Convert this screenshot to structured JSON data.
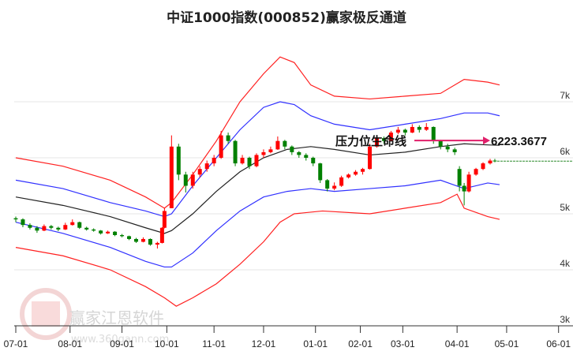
{
  "chart_data": {
    "type": "candlestick",
    "title": "中证1000指数(000852)赢家极反通道",
    "xlabel": "",
    "ylabel": "",
    "ylim": [
      3000,
      8800
    ],
    "yticks": [
      {
        "v": 3000,
        "label": "3k"
      },
      {
        "v": 4000,
        "label": "4k"
      },
      {
        "v": 5000,
        "label": "5k"
      },
      {
        "v": 6000,
        "label": "6k"
      },
      {
        "v": 7000,
        "label": "7k"
      }
    ],
    "xticks": [
      {
        "i": 0,
        "label": "07-01"
      },
      {
        "i": 23,
        "label": "08-01"
      },
      {
        "i": 45,
        "label": "09-01"
      },
      {
        "i": 64,
        "label": "10-01"
      },
      {
        "i": 84,
        "label": "11-01"
      },
      {
        "i": 105,
        "label": "12-01"
      },
      {
        "i": 127,
        "label": "01-01"
      },
      {
        "i": 146,
        "label": "02-01"
      },
      {
        "i": 164,
        "label": "03-01"
      },
      {
        "i": 187,
        "label": "04-01"
      },
      {
        "i": 208,
        "label": "05-01"
      },
      {
        "i": 230,
        "label": "06-01"
      }
    ],
    "x_unit": "trading-day index from 07-01",
    "candles_ohlc": [
      [
        0,
        4920,
        4950,
        4850,
        4900
      ],
      [
        3,
        4900,
        4920,
        4760,
        4800
      ],
      [
        6,
        4800,
        4830,
        4720,
        4750
      ],
      [
        9,
        4750,
        4780,
        4660,
        4700
      ],
      [
        12,
        4700,
        4810,
        4690,
        4780
      ],
      [
        15,
        4780,
        4800,
        4720,
        4750
      ],
      [
        18,
        4750,
        4770,
        4690,
        4720
      ],
      [
        21,
        4720,
        4840,
        4710,
        4800
      ],
      [
        24,
        4800,
        4900,
        4790,
        4850
      ],
      [
        27,
        4850,
        4860,
        4730,
        4750
      ],
      [
        30,
        4750,
        4770,
        4700,
        4720
      ],
      [
        33,
        4720,
        4740,
        4680,
        4700
      ],
      [
        36,
        4700,
        4710,
        4630,
        4650
      ],
      [
        39,
        4650,
        4700,
        4640,
        4680
      ],
      [
        42,
        4680,
        4690,
        4600,
        4620
      ],
      [
        45,
        4620,
        4640,
        4580,
        4600
      ],
      [
        48,
        4600,
        4610,
        4530,
        4550
      ],
      [
        51,
        4550,
        4570,
        4480,
        4500
      ],
      [
        54,
        4500,
        4580,
        4490,
        4550
      ],
      [
        57,
        4550,
        4560,
        4430,
        4450
      ],
      [
        60,
        4450,
        4500,
        4380,
        4480
      ],
      [
        62,
        4480,
        4760,
        4470,
        4750
      ],
      [
        63,
        4750,
        5100,
        4740,
        5050
      ],
      [
        66,
        5100,
        6400,
        5100,
        6200
      ],
      [
        69,
        6200,
        6250,
        5600,
        5700
      ],
      [
        72,
        5700,
        5750,
        5380,
        5500
      ],
      [
        75,
        5500,
        5750,
        5450,
        5700
      ],
      [
        78,
        5700,
        5850,
        5650,
        5800
      ],
      [
        81,
        5800,
        5950,
        5750,
        5900
      ],
      [
        84,
        5900,
        6050,
        5850,
        6000
      ],
      [
        87,
        6000,
        6480,
        5980,
        6400
      ],
      [
        90,
        6400,
        6450,
        6250,
        6300
      ],
      [
        93,
        6300,
        6320,
        5850,
        5900
      ],
      [
        96,
        5900,
        6050,
        5880,
        6000
      ],
      [
        99,
        6000,
        6020,
        5800,
        5850
      ],
      [
        102,
        5850,
        6080,
        5830,
        6050
      ],
      [
        105,
        6050,
        6150,
        6000,
        6100
      ],
      [
        108,
        6100,
        6200,
        6080,
        6150
      ],
      [
        111,
        6150,
        6380,
        6140,
        6300
      ],
      [
        114,
        6300,
        6320,
        6150,
        6200
      ],
      [
        117,
        6200,
        6220,
        6050,
        6100
      ],
      [
        120,
        6100,
        6120,
        6000,
        6050
      ],
      [
        123,
        6050,
        6080,
        5950,
        6000
      ],
      [
        126,
        6000,
        6020,
        5850,
        5900
      ],
      [
        129,
        5900,
        5910,
        5550,
        5600
      ],
      [
        132,
        5600,
        5620,
        5400,
        5450
      ],
      [
        135,
        5450,
        5560,
        5420,
        5500
      ],
      [
        138,
        5500,
        5680,
        5480,
        5650
      ],
      [
        141,
        5650,
        5720,
        5630,
        5700
      ],
      [
        144,
        5700,
        5780,
        5680,
        5750
      ],
      [
        147,
        5750,
        5820,
        5700,
        5800
      ],
      [
        150,
        5800,
        6250,
        5790,
        6200
      ],
      [
        153,
        6200,
        6400,
        6180,
        6350
      ],
      [
        156,
        6350,
        6380,
        6250,
        6300
      ],
      [
        159,
        6300,
        6480,
        6290,
        6450
      ],
      [
        162,
        6450,
        6550,
        6420,
        6500
      ],
      [
        165,
        6500,
        6520,
        6400,
        6450
      ],
      [
        168,
        6450,
        6600,
        6440,
        6550
      ],
      [
        171,
        6550,
        6580,
        6450,
        6500
      ],
      [
        174,
        6500,
        6620,
        6480,
        6550
      ],
      [
        177,
        6550,
        6560,
        6250,
        6300
      ],
      [
        180,
        6300,
        6320,
        6150,
        6200
      ],
      [
        183,
        6200,
        6250,
        6100,
        6150
      ],
      [
        186,
        6150,
        6180,
        6050,
        6100
      ],
      [
        188,
        5800,
        5850,
        5400,
        5500
      ],
      [
        190,
        5500,
        5550,
        5150,
        5400
      ],
      [
        192,
        5400,
        5750,
        5380,
        5700
      ],
      [
        195,
        5700,
        5820,
        5680,
        5800
      ],
      [
        198,
        5800,
        5920,
        5780,
        5900
      ],
      [
        201,
        5900,
        5980,
        5880,
        5950
      ],
      [
        203,
        5950,
        5980,
        5920,
        5940
      ]
    ],
    "series": [
      {
        "name": "upper-outer",
        "color": "#ff2020",
        "points": [
          [
            0,
            6000
          ],
          [
            20,
            5850
          ],
          [
            40,
            5600
          ],
          [
            55,
            5300
          ],
          [
            63,
            5100
          ],
          [
            66,
            5200
          ],
          [
            75,
            5700
          ],
          [
            85,
            6300
          ],
          [
            95,
            7000
          ],
          [
            105,
            7500
          ],
          [
            112,
            7800
          ],
          [
            118,
            7700
          ],
          [
            125,
            7300
          ],
          [
            135,
            7100
          ],
          [
            150,
            7050
          ],
          [
            165,
            7100
          ],
          [
            180,
            7150
          ],
          [
            190,
            7400
          ],
          [
            200,
            7350
          ],
          [
            205,
            7300
          ]
        ]
      },
      {
        "name": "upper-inner",
        "color": "#3030ff",
        "points": [
          [
            0,
            5600
          ],
          [
            20,
            5450
          ],
          [
            40,
            5200
          ],
          [
            55,
            5050
          ],
          [
            63,
            4950
          ],
          [
            66,
            5000
          ],
          [
            75,
            5500
          ],
          [
            85,
            6000
          ],
          [
            95,
            6500
          ],
          [
            105,
            6900
          ],
          [
            112,
            7000
          ],
          [
            118,
            6950
          ],
          [
            125,
            6750
          ],
          [
            135,
            6600
          ],
          [
            150,
            6500
          ],
          [
            165,
            6600
          ],
          [
            180,
            6700
          ],
          [
            190,
            6800
          ],
          [
            200,
            6800
          ],
          [
            205,
            6750
          ]
        ]
      },
      {
        "name": "middle",
        "color": "#222222",
        "points": [
          [
            0,
            5300
          ],
          [
            20,
            5150
          ],
          [
            40,
            4950
          ],
          [
            55,
            4750
          ],
          [
            63,
            4650
          ],
          [
            66,
            4700
          ],
          [
            75,
            5000
          ],
          [
            85,
            5400
          ],
          [
            95,
            5750
          ],
          [
            105,
            6000
          ],
          [
            115,
            6150
          ],
          [
            125,
            6200
          ],
          [
            135,
            6150
          ],
          [
            150,
            6050
          ],
          [
            165,
            6100
          ],
          [
            180,
            6200
          ],
          [
            190,
            6250
          ],
          [
            200,
            6230
          ],
          [
            205,
            6223
          ]
        ]
      },
      {
        "name": "lower-inner",
        "color": "#3030ff",
        "points": [
          [
            0,
            4850
          ],
          [
            20,
            4650
          ],
          [
            40,
            4400
          ],
          [
            55,
            4150
          ],
          [
            63,
            4050
          ],
          [
            66,
            4050
          ],
          [
            75,
            4300
          ],
          [
            85,
            4700
          ],
          [
            95,
            5050
          ],
          [
            105,
            5300
          ],
          [
            115,
            5400
          ],
          [
            125,
            5450
          ],
          [
            135,
            5400
          ],
          [
            150,
            5450
          ],
          [
            165,
            5500
          ],
          [
            180,
            5600
          ],
          [
            190,
            5450
          ],
          [
            200,
            5550
          ],
          [
            205,
            5520
          ]
        ]
      },
      {
        "name": "lower-outer",
        "color": "#ff2020",
        "points": [
          [
            0,
            4400
          ],
          [
            20,
            4250
          ],
          [
            40,
            4000
          ],
          [
            55,
            3700
          ],
          [
            63,
            3500
          ],
          [
            68,
            3350
          ],
          [
            75,
            3500
          ],
          [
            85,
            3750
          ],
          [
            95,
            4100
          ],
          [
            105,
            4500
          ],
          [
            112,
            4850
          ],
          [
            118,
            5000
          ],
          [
            130,
            5050
          ],
          [
            150,
            5000
          ],
          [
            165,
            5100
          ],
          [
            180,
            5200
          ],
          [
            187,
            5350
          ],
          [
            190,
            5100
          ],
          [
            200,
            4950
          ],
          [
            205,
            4900
          ]
        ]
      }
    ],
    "current_price_line": 5940,
    "annotation": {
      "label": "压力位生命线",
      "value": "6223.3677",
      "at_value": 6223.3677,
      "from_index": 168,
      "to_index": 201,
      "color": "#e0206a"
    },
    "colors": {
      "up": "#ff0000",
      "down": "#008000"
    }
  },
  "watermark": {
    "name": "赢家江恩软件",
    "url": "www.360gann.com",
    "seal": "江恩赢家"
  }
}
